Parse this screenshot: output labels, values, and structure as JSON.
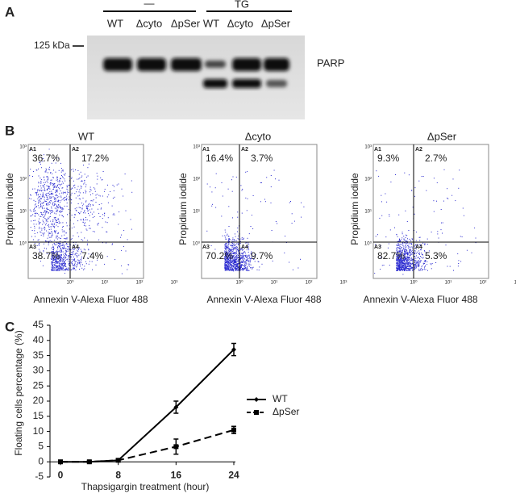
{
  "panel_a": {
    "label": "A",
    "groups": [
      "—",
      "TG"
    ],
    "lanes": [
      "WT",
      "Δcyto",
      "ΔpSer",
      "WT",
      "Δcyto",
      "ΔpSer"
    ],
    "marker": "125 kDa",
    "protein": "PARP"
  },
  "panel_b": {
    "label": "B",
    "x_label": "Annexin V-Alexa Fluor 488",
    "y_label": "Propidium iodide",
    "y_tick_labels": [
      "10³",
      "10²",
      "10¹",
      "10⁰"
    ],
    "x_tick_labels": [
      "10⁰",
      "10¹",
      "10²",
      "10³"
    ],
    "plots": [
      {
        "title": "WT",
        "quadrants": [
          {
            "name": "A1",
            "value": "36.7%"
          },
          {
            "name": "A2",
            "value": "17.2%"
          },
          {
            "name": "A3",
            "value": "38.7%"
          },
          {
            "name": "A4",
            "value": "7.4%"
          }
        ]
      },
      {
        "title": "Δcyto",
        "quadrants": [
          {
            "name": "A1",
            "value": "16.4%"
          },
          {
            "name": "A2",
            "value": "3.7%"
          },
          {
            "name": "A3",
            "value": "70.2%"
          },
          {
            "name": "A4",
            "value": "9.7%"
          }
        ]
      },
      {
        "title": "ΔpSer",
        "quadrants": [
          {
            "name": "A1",
            "value": "9.3%"
          },
          {
            "name": "A2",
            "value": "2.7%"
          },
          {
            "name": "A3",
            "value": "82.7%"
          },
          {
            "name": "A4",
            "value": "5.3%"
          }
        ]
      }
    ]
  },
  "chart_data": {
    "type": "line",
    "label": "C",
    "x_label": "Thapsigargin treatment (hour)",
    "y_label": "Floating cells percentage (%)",
    "x": [
      0,
      4,
      8,
      16,
      24
    ],
    "xlim": [
      0,
      24
    ],
    "xticks": [
      0,
      8,
      16,
      24
    ],
    "ylim": [
      -5,
      45
    ],
    "yticks": [
      -5,
      0,
      5,
      10,
      15,
      20,
      25,
      30,
      35,
      40,
      45
    ],
    "legend": "right",
    "series": [
      {
        "name": "WT",
        "color": "#000000",
        "dashed": false,
        "values": [
          0,
          0,
          0.5,
          18,
          37
        ],
        "errors": [
          0.3,
          0.3,
          0.5,
          2,
          2
        ]
      },
      {
        "name": "ΔpSer",
        "color": "#000000",
        "dashed": true,
        "values": [
          0,
          0,
          0.5,
          5,
          10.5
        ],
        "errors": [
          0.3,
          0.3,
          0.5,
          2.5,
          1.2
        ]
      }
    ]
  }
}
